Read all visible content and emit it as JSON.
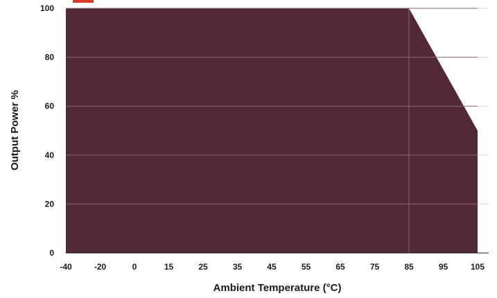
{
  "chart_data": {
    "type": "area",
    "title": "",
    "xlabel": "Ambient Temperature (°C)",
    "ylabel": "Output Power %",
    "x_tick_labels": [
      "-40",
      "-20",
      "0",
      "15",
      "25",
      "35",
      "45",
      "55",
      "65",
      "75",
      "85",
      "95",
      "105"
    ],
    "y_tick_labels": [
      "0",
      "20",
      "40",
      "60",
      "80",
      "100"
    ],
    "ylim": [
      0,
      100
    ],
    "grid": true,
    "series": [
      {
        "points": [
          {
            "x": "-40",
            "y": 100
          },
          {
            "x": "85",
            "y": 100
          },
          {
            "x": "105",
            "y": 50
          }
        ]
      }
    ]
  },
  "colors": {
    "fill": "#522737",
    "grid_over_fill": "#8a6a73",
    "grid_outside": "#d9d9d9",
    "text": "#1a1a1a",
    "title_fragment": "#d63a2a"
  }
}
